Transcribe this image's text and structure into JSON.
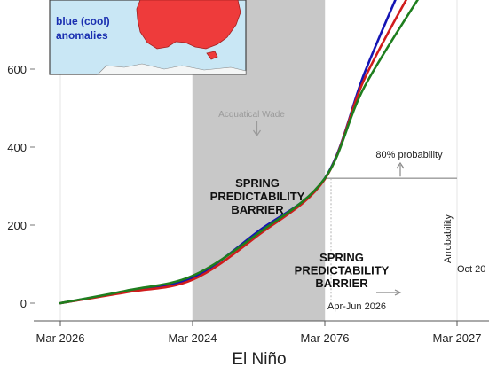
{
  "chart_data": {
    "type": "line",
    "xlabel": "El Niño",
    "ylabel": "",
    "x_tick_labels": [
      "Mar 2026",
      "Mar 2024",
      "Mar 2076",
      "Mar 2027"
    ],
    "x_positions": [
      0,
      1,
      2,
      3
    ],
    "ylim": [
      -30,
      780
    ],
    "y_ticks": [
      0,
      200,
      400,
      600
    ],
    "grid": "vertical",
    "series": [
      {
        "color": "#1414b4",
        "x": [
          0,
          0.5,
          1,
          1.5,
          2,
          2.3,
          2.6
        ],
        "y": [
          0,
          30,
          65,
          185,
          320,
          590,
          830
        ]
      },
      {
        "color": "#d01c1c",
        "x": [
          0,
          0.5,
          1,
          1.5,
          2,
          2.3,
          2.7
        ],
        "y": [
          0,
          28,
          60,
          175,
          318,
          575,
          830
        ]
      },
      {
        "color": "#1e7e1e",
        "x": [
          0,
          0.5,
          1,
          1.5,
          2,
          2.3,
          2.8
        ],
        "y": [
          0,
          32,
          70,
          180,
          320,
          555,
          830
        ]
      }
    ],
    "shaded_region": {
      "x_start": 1,
      "x_end": 2,
      "color": "#c8c8c8",
      "label": "Acquatical Wade"
    },
    "annotations": {
      "barrier_top": [
        "SPRING",
        "PREDICTABILITY",
        "BARRIER"
      ],
      "barrier_bottom": [
        "SPRING",
        "PREDICTABILITY",
        "BARRIER"
      ],
      "probability": "80% probability",
      "season": "Apr-Jun 2026",
      "arrobability": "Arrobability",
      "oct": "Oct 20",
      "threshold_y": 320,
      "threshold_x_end": 3
    },
    "inset": {
      "legend_lines": [
        "blue (cool)",
        "anomalies"
      ],
      "land_color": "#ee3b3b",
      "sea_color": "#c9e7f5"
    }
  }
}
